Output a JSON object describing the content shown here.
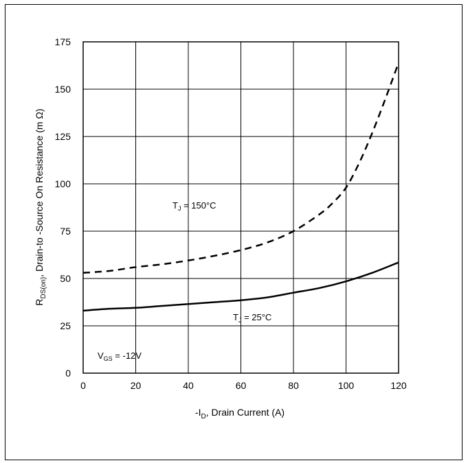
{
  "chart_data": {
    "type": "line",
    "xlabel": "-I",
    "xlabel_sub": "D",
    "xlabel_rest": ", Drain Current (A)",
    "ylabel": "R",
    "ylabel_sub": "DS(on)",
    "ylabel_rest": ", Drain-to -Source On Resistance (m Ω)",
    "xlim": [
      0,
      120
    ],
    "ylim": [
      0,
      175
    ],
    "xticks": [
      0,
      20,
      40,
      60,
      80,
      100,
      120
    ],
    "yticks": [
      0,
      25,
      50,
      75,
      100,
      125,
      150,
      175
    ],
    "grid": true,
    "series": [
      {
        "name": "T_J = 150°C",
        "style": "dashed",
        "x": [
          0,
          10,
          20,
          30,
          40,
          50,
          60,
          70,
          80,
          90,
          95,
          100,
          105,
          110,
          115,
          120
        ],
        "y": [
          53,
          54,
          56,
          57.5,
          59.5,
          62,
          65,
          69,
          75,
          84,
          90,
          98,
          111,
          127,
          145,
          164
        ]
      },
      {
        "name": "T_J = 25°C",
        "style": "solid",
        "x": [
          0,
          10,
          20,
          30,
          40,
          50,
          60,
          70,
          80,
          90,
          100,
          110,
          120
        ],
        "y": [
          33,
          34,
          34.5,
          35.5,
          36.5,
          37.5,
          38.5,
          40,
          42.5,
          45,
          48.5,
          53,
          58.5
        ]
      }
    ],
    "annotations": {
      "t150": {
        "main": "T",
        "sub": "J",
        "rest": " = 150°C"
      },
      "t25": {
        "main": "T",
        "sub": "J",
        "rest": " = 25°C"
      },
      "vgs": {
        "main": "V",
        "sub": "GS",
        "rest": " = -12V"
      }
    }
  }
}
